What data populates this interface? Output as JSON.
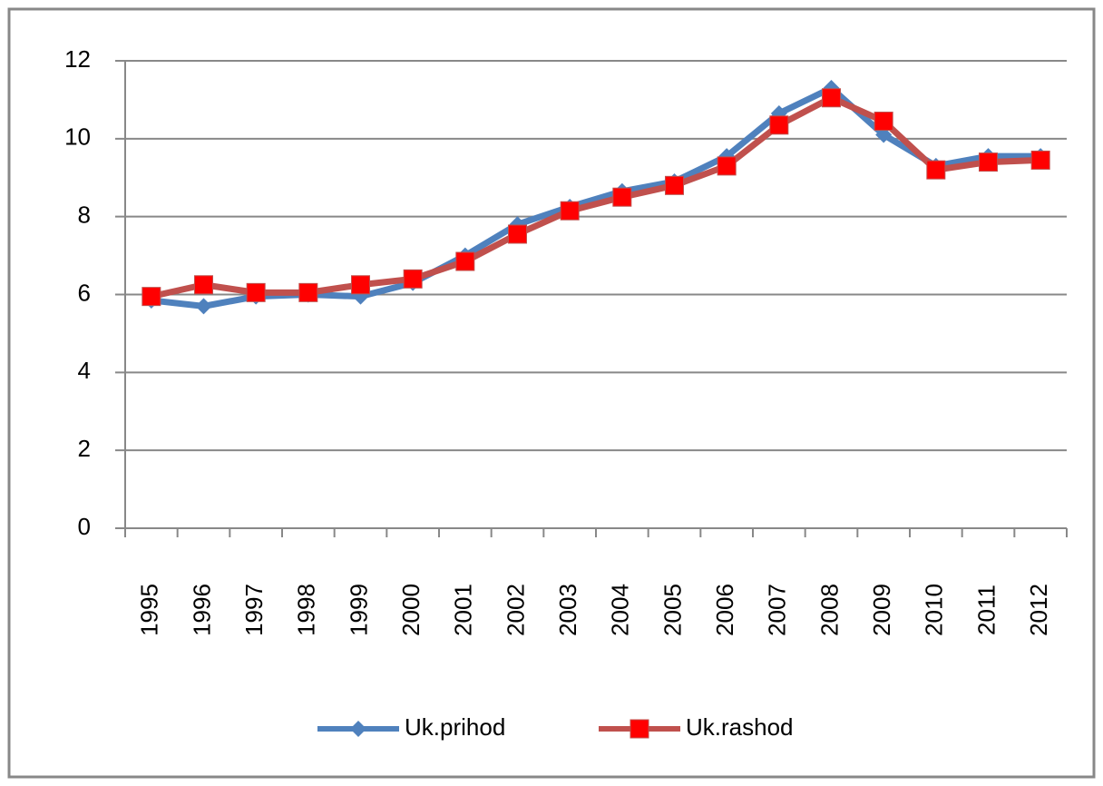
{
  "chart_data": {
    "type": "line",
    "categories": [
      "1995",
      "1996",
      "1997",
      "1998",
      "1999",
      "2000",
      "2001",
      "2002",
      "2003",
      "2004",
      "2005",
      "2006",
      "2007",
      "2008",
      "2009",
      "2010",
      "2011",
      "2012"
    ],
    "series": [
      {
        "name": "Uk.prihod",
        "color": "#4f81bd",
        "marker": "diamond",
        "values": [
          5.85,
          5.7,
          5.95,
          6.0,
          5.95,
          6.3,
          7.0,
          7.8,
          8.25,
          8.65,
          8.9,
          9.55,
          10.65,
          11.3,
          10.1,
          9.3,
          9.55,
          9.55
        ]
      },
      {
        "name": "Uk.rashod",
        "color": "#c0504d",
        "marker": "square",
        "marker_color": "#ff0000",
        "values": [
          5.95,
          6.25,
          6.05,
          6.05,
          6.25,
          6.4,
          6.85,
          7.55,
          8.15,
          8.5,
          8.8,
          9.3,
          10.35,
          11.05,
          10.45,
          9.2,
          9.4,
          9.45
        ]
      }
    ],
    "ylim": [
      0,
      12
    ],
    "yticks": [
      0,
      2,
      4,
      6,
      8,
      10,
      12
    ],
    "grid": true,
    "legend": "bottom"
  }
}
